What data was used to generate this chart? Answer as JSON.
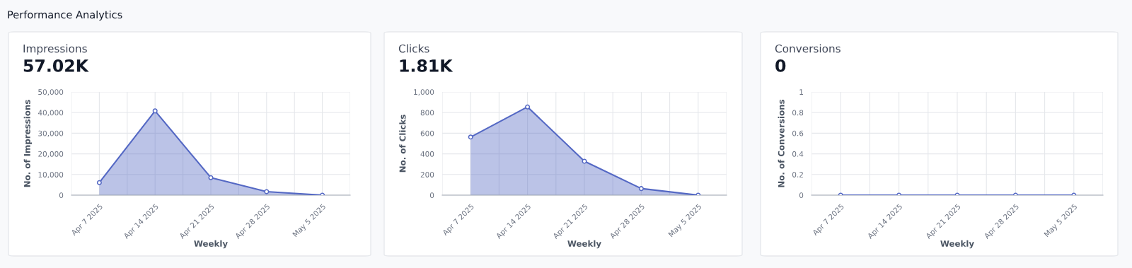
{
  "chart_data": [
    {
      "type": "area",
      "title": "Impressions",
      "subtitle": "57.02K",
      "annotations": [
        "Performance Analytics"
      ],
      "xlabel": "Weekly",
      "ylabel": "No. of Impressions",
      "categories": [
        "Apr 7 2025",
        "Apr 14 2025",
        "Apr 21 2025",
        "Apr 28 2025",
        "May 5 2025"
      ],
      "series": [
        {
          "color": "#5468c4",
          "values": [
            6100,
            40800,
            8500,
            1700,
            0
          ]
        }
      ],
      "ylim": [
        0,
        50000
      ],
      "yticks": [
        0,
        {
          "value": 10000,
          "label": "10,000"
        },
        {
          "value": 20000,
          "label": "20,000"
        },
        {
          "value": 30000,
          "label": "30,000"
        },
        {
          "value": 40000,
          "label": "40,000"
        },
        {
          "value": 50000,
          "label": "50,000"
        }
      ],
      "grid": true,
      "marker": "circle"
    },
    {
      "type": "area",
      "title": "Clicks",
      "subtitle": "1.81K",
      "xlabel": "Weekly",
      "ylabel": "No. of Clicks",
      "categories": [
        "Apr 7 2025",
        "Apr 14 2025",
        "Apr 21 2025",
        "Apr 28 2025",
        "May 5 2025"
      ],
      "series": [
        {
          "color": "#5468c4",
          "values": [
            563,
            855,
            329,
            64,
            0
          ]
        }
      ],
      "ylim": [
        0,
        1000
      ],
      "yticks": [
        0,
        200,
        400,
        600,
        800,
        {
          "value": 1000,
          "label": "1,000"
        }
      ],
      "grid": true,
      "marker": "circle"
    },
    {
      "type": "line",
      "title": "Conversions",
      "subtitle": "0",
      "xlabel": "Weekly",
      "ylabel": "No. of Conversions",
      "categories": [
        "Apr 7 2025",
        "Apr 14 2025",
        "Apr 21 2025",
        "Apr 28 2025",
        "May 5 2025"
      ],
      "series": [
        {
          "color": "#5468c4",
          "values": [
            0,
            0,
            0,
            0,
            0
          ]
        }
      ],
      "ylim": [
        0,
        1
      ],
      "yticks": [
        0,
        0.2,
        0.4,
        0.6,
        0.8,
        1
      ],
      "grid": true,
      "marker": "circle"
    }
  ]
}
